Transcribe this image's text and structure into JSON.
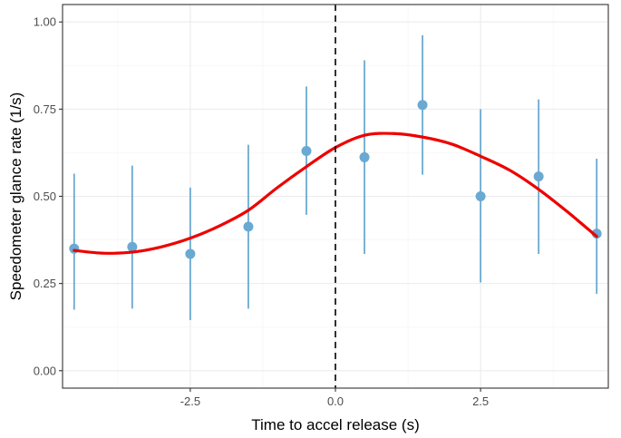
{
  "chart_data": {
    "type": "scatter",
    "xlabel": "Time to accel release (s)",
    "ylabel": "Speedometer glance rate (1/s)",
    "xlim": [
      -4.7,
      4.7
    ],
    "ylim": [
      -0.05,
      1.05
    ],
    "x_ticks": [
      -2.5,
      0.0,
      2.5
    ],
    "x_tick_labels": [
      "-2.5",
      "0.0",
      "2.5"
    ],
    "y_ticks": [
      0.0,
      0.25,
      0.5,
      0.75,
      1.0
    ],
    "y_tick_labels": [
      "0.00",
      "0.25",
      "0.50",
      "0.75",
      "1.00"
    ],
    "grid": true,
    "vline_x": 0,
    "colors": {
      "points": "#6aa9d1",
      "smooth": "#ee0000",
      "vline": "#000000",
      "grid": "#ebebeb",
      "panel_border": "#333333"
    },
    "points": [
      {
        "x": -4.5,
        "y": 0.35,
        "lower": 0.175,
        "upper": 0.565
      },
      {
        "x": -3.5,
        "y": 0.355,
        "lower": 0.178,
        "upper": 0.588
      },
      {
        "x": -2.5,
        "y": 0.335,
        "lower": 0.145,
        "upper": 0.525
      },
      {
        "x": -1.5,
        "y": 0.413,
        "lower": 0.178,
        "upper": 0.648
      },
      {
        "x": -0.5,
        "y": 0.63,
        "lower": 0.447,
        "upper": 0.815
      },
      {
        "x": 0.5,
        "y": 0.612,
        "lower": 0.335,
        "upper": 0.89
      },
      {
        "x": 1.5,
        "y": 0.762,
        "lower": 0.562,
        "upper": 0.962
      },
      {
        "x": 2.5,
        "y": 0.5,
        "lower": 0.253,
        "upper": 0.75
      },
      {
        "x": 3.5,
        "y": 0.557,
        "lower": 0.335,
        "upper": 0.778
      },
      {
        "x": 4.5,
        "y": 0.393,
        "lower": 0.22,
        "upper": 0.608
      }
    ],
    "smooth_line": [
      {
        "x": -4.5,
        "y": 0.345
      },
      {
        "x": -4.0,
        "y": 0.337
      },
      {
        "x": -3.5,
        "y": 0.34
      },
      {
        "x": -3.0,
        "y": 0.355
      },
      {
        "x": -2.5,
        "y": 0.38
      },
      {
        "x": -2.0,
        "y": 0.415
      },
      {
        "x": -1.5,
        "y": 0.46
      },
      {
        "x": -1.0,
        "y": 0.525
      },
      {
        "x": -0.5,
        "y": 0.585
      },
      {
        "x": 0.0,
        "y": 0.64
      },
      {
        "x": 0.5,
        "y": 0.675
      },
      {
        "x": 1.0,
        "y": 0.68
      },
      {
        "x": 1.5,
        "y": 0.67
      },
      {
        "x": 2.0,
        "y": 0.65
      },
      {
        "x": 2.5,
        "y": 0.615
      },
      {
        "x": 3.0,
        "y": 0.575
      },
      {
        "x": 3.5,
        "y": 0.52
      },
      {
        "x": 4.0,
        "y": 0.455
      },
      {
        "x": 4.5,
        "y": 0.385
      }
    ]
  }
}
